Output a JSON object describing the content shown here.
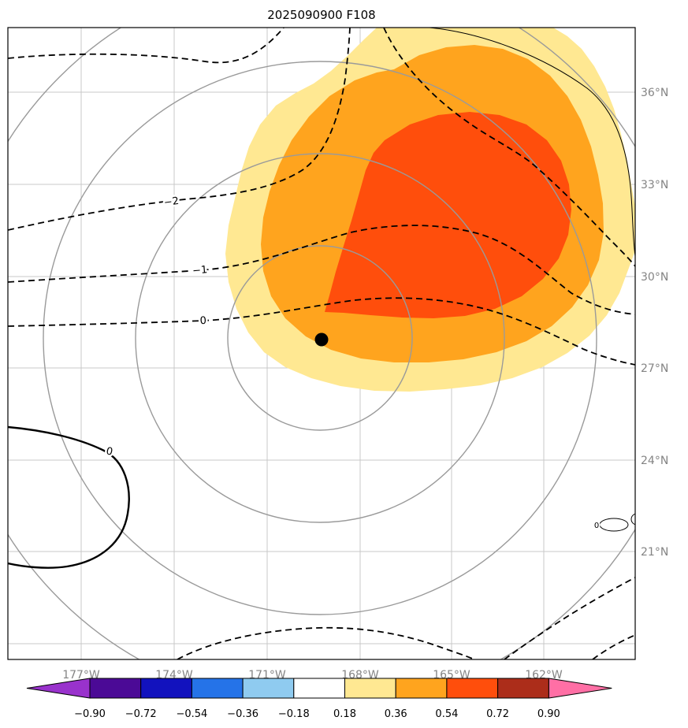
{
  "chart_data": {
    "type": "filled_contour_map",
    "title": "2025090900 F108",
    "x_tick_labels": [
      "177°W",
      "174°W",
      "171°W",
      "168°W",
      "165°W",
      "162°W"
    ],
    "y_tick_labels": [
      "36°N",
      "33°N",
      "30°N",
      "27°N",
      "24°N",
      "21°N"
    ],
    "grid": true,
    "filled_levels": [
      {
        "min": 0.18,
        "max": 0.36,
        "color": "#FFE892"
      },
      {
        "min": 0.36,
        "max": 0.54,
        "color": "#FFA41E"
      },
      {
        "min": 0.54,
        "max": 0.72,
        "color": "#FF4E0C"
      }
    ],
    "contour_labels": {
      "neg2": "−2",
      "neg1": "−1",
      "zero_dashed": "0",
      "zero_solid": "0",
      "zero_small": "0"
    },
    "range_rings": {
      "count": 4,
      "color": "#9a9a9a"
    },
    "marker": {
      "shape": "filled-circle",
      "color": "#000000"
    },
    "colorbar": {
      "orientation": "horizontal",
      "tick_labels": [
        "−0.90",
        "−0.72",
        "−0.54",
        "−0.36",
        "−0.18",
        "0.18",
        "0.36",
        "0.54",
        "0.72",
        "0.90"
      ],
      "segment_colors": [
        "#4B0A96",
        "#1212BE",
        "#2573E8",
        "#8FCBF0",
        "#FFFFFF",
        "#FFE892",
        "#FFA41E",
        "#FF4E0C",
        "#AC2D1A"
      ],
      "under_arrow_color": "#9932CC",
      "over_arrow_color": "#FF6FA5"
    }
  }
}
